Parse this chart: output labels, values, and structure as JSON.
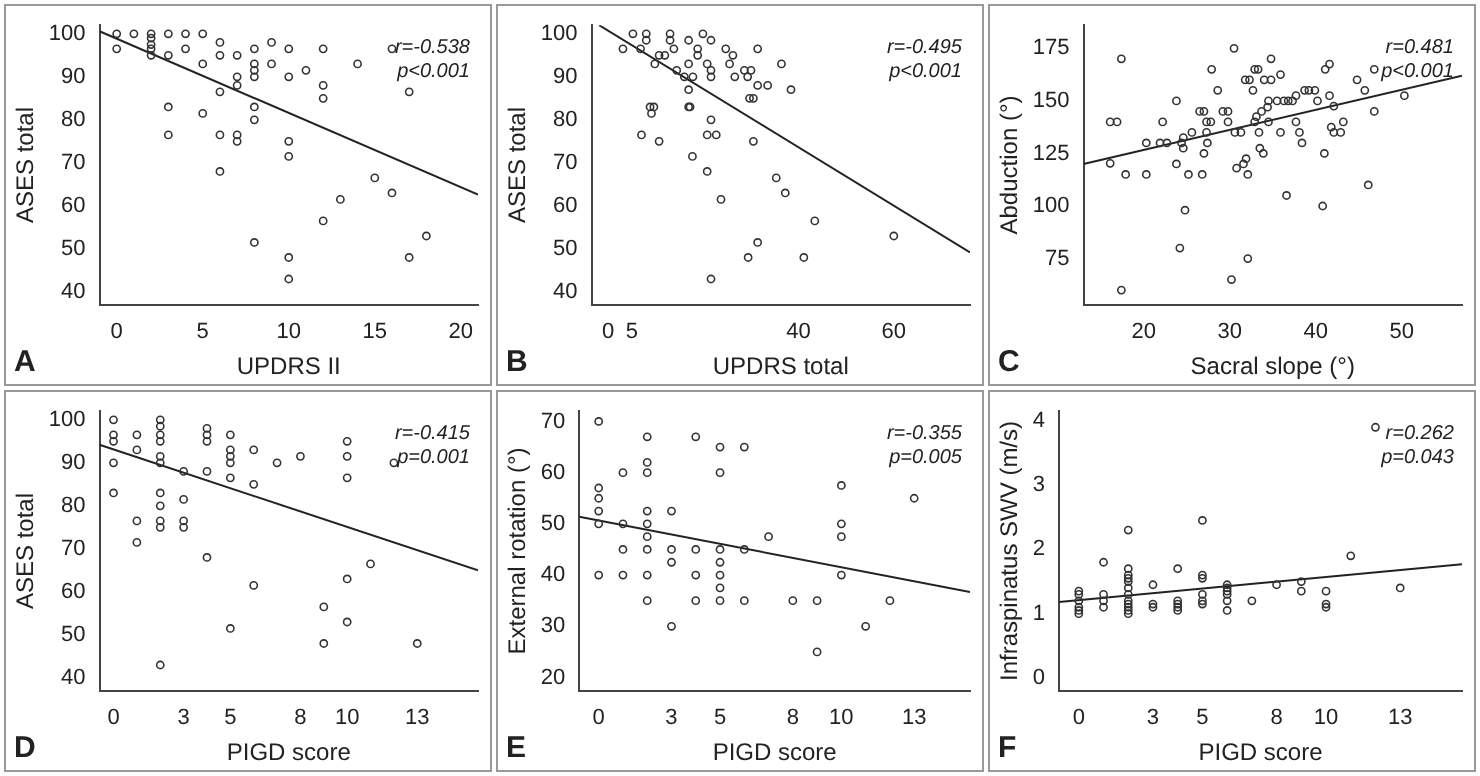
{
  "chart_data": [
    {
      "type": "scatter",
      "title": "A",
      "xlabel": "UPDRS II",
      "ylabel": "ASES total",
      "xlim": [
        -1,
        21
      ],
      "ylim": [
        37,
        102
      ],
      "xticks": [
        0,
        5,
        10,
        15,
        20
      ],
      "yticks": [
        40,
        50,
        60,
        70,
        80,
        90,
        100
      ],
      "grid": false,
      "legend": false,
      "marker": "circle",
      "annotations": [
        "r=-0.538",
        "p<0.001"
      ],
      "series": [
        {
          "type": "scatter",
          "color": "#333333",
          "x": [
            0,
            0,
            1,
            2,
            2,
            2,
            2,
            2,
            3,
            3,
            3,
            3,
            4,
            4,
            5,
            5,
            5,
            6,
            6,
            6,
            6,
            6,
            7,
            7,
            7,
            7,
            7,
            8,
            8,
            8,
            8,
            8,
            8,
            8,
            9,
            9,
            10,
            10,
            10,
            10,
            10,
            10,
            11,
            12,
            12,
            12,
            12,
            13,
            14,
            15,
            16,
            16,
            17,
            17,
            18
          ],
          "values": [
            100,
            96.5,
            100,
            100,
            99,
            97.5,
            96.5,
            95,
            100,
            95,
            83,
            76.5,
            100,
            96.5,
            100,
            93,
            81.5,
            98,
            95,
            86.5,
            76.5,
            68,
            95,
            90,
            88,
            76.5,
            75,
            96.5,
            93,
            91.5,
            90,
            83,
            80,
            51.5,
            98,
            93,
            96.5,
            90,
            75,
            71.5,
            48,
            43,
            91.5,
            96.5,
            88,
            85,
            56.5,
            61.5,
            93,
            66.5,
            96.5,
            63,
            86.5,
            48,
            53
          ]
        },
        {
          "type": "line",
          "marker": "none",
          "color": "#222222",
          "x": [
            -1,
            21
          ],
          "values": [
            100.6,
            62.6
          ]
        }
      ]
    },
    {
      "type": "scatter",
      "title": "B",
      "xlabel": "UPDRS total",
      "ylabel": "ASES total",
      "xlim": [
        -3.5,
        76
      ],
      "ylim": [
        37,
        102
      ],
      "xticks": [
        0,
        5,
        40,
        60
      ],
      "yticks": [
        40,
        50,
        60,
        70,
        80,
        90,
        100
      ],
      "grid": false,
      "legend": false,
      "marker": "circle",
      "annotations": [
        "r=-0.495",
        "p<0.001"
      ],
      "series": [
        {
          "type": "scatter",
          "color": "#333333",
          "x": [
            3.1,
            5.2,
            6.8,
            8,
            8,
            9.8,
            10.7,
            11.9,
            13,
            13,
            13.8,
            14.4,
            16,
            16.9,
            16.9,
            17.8,
            16.9,
            16.9,
            18.8,
            18.8,
            19.9,
            20.8,
            21.6,
            21.6,
            21.6,
            24.7,
            25.5,
            26.2,
            26.6,
            28.6,
            29.3,
            30,
            29.7,
            30.5,
            31.4,
            31.4,
            33.5,
            36.4,
            38.4,
            7,
            8.8,
            9.6,
            9.1,
            10.7,
            17.2,
            21.6,
            20.8,
            22.7,
            17.7,
            20.8,
            23.7,
            30.5,
            35.3,
            37.2,
            29.4,
            31.4,
            21.6,
            41.1,
            43.4,
            60
          ],
          "values": [
            96.5,
            100,
            96.5,
            100,
            98.5,
            93,
            95,
            95,
            100,
            98.5,
            96.5,
            91.5,
            90,
            93,
            98.5,
            90,
            87,
            83,
            96.5,
            95,
            100,
            93,
            91.5,
            90,
            98.5,
            96.5,
            93,
            95,
            90,
            91.5,
            90,
            91.5,
            85,
            85,
            96.5,
            88,
            88,
            93,
            87,
            76.5,
            83,
            83,
            81.5,
            75,
            83,
            80,
            76.5,
            76.5,
            71.5,
            68,
            61.5,
            75,
            66.5,
            63,
            48,
            51.5,
            43,
            48,
            56.5,
            53
          ]
        },
        {
          "type": "line",
          "marker": "none",
          "color": "#222222",
          "x": [
            -1.9,
            76
          ],
          "values": [
            102,
            49.2
          ]
        }
      ]
    },
    {
      "type": "scatter",
      "title": "C",
      "xlabel": "Sacral slope (°)",
      "ylabel": "Abduction (°)",
      "xlim": [
        13,
        57
      ],
      "ylim": [
        53,
        186
      ],
      "xticks": [
        20,
        30,
        40,
        50
      ],
      "yticks": [
        75,
        100,
        125,
        150,
        175
      ],
      "grid": false,
      "legend": false,
      "marker": "circle",
      "annotations": [
        "r=0.481",
        "p<0.001"
      ],
      "series": [
        {
          "type": "scatter",
          "color": "#333333",
          "x": [
            16.1,
            16.1,
            16.9,
            17.4,
            17.9,
            17.4,
            20.3,
            20.3,
            22.2,
            21.9,
            22.7,
            23.8,
            23.8,
            24.2,
            24.4,
            24.6,
            24.6,
            24.8,
            25.2,
            25.6,
            26.8,
            26.5,
            27,
            27,
            27.3,
            27.3,
            27.8,
            27.4,
            27.9,
            28.6,
            29.2,
            29.8,
            29.8,
            30.5,
            30.2,
            30.6,
            30.8,
            31.3,
            31.8,
            31.6,
            31.9,
            32.1,
            32.1,
            32.3,
            32.7,
            32.9,
            32.9,
            33.1,
            33.3,
            33.4,
            33.5,
            33.7,
            33.9,
            34,
            34.4,
            34.5,
            34.5,
            34.8,
            34.8,
            35.5,
            35.9,
            35.9,
            36.3,
            36.8,
            36.6,
            37.3,
            37.7,
            37.7,
            38.1,
            38.4,
            38.7,
            39.2,
            39.9,
            40.2,
            40.8,
            41,
            41.1,
            41.6,
            41.6,
            41.8,
            42.1,
            42.1,
            42.9,
            43.2,
            44.8,
            45.7,
            46.1,
            46.8,
            46.8,
            50.3
          ],
          "values": [
            120.3,
            140,
            140,
            170,
            115,
            60,
            130,
            115,
            140,
            130,
            130,
            150,
            120,
            80,
            130,
            132.5,
            127.5,
            98,
            115,
            135,
            115,
            145,
            145,
            125,
            135,
            140,
            140,
            130,
            165,
            155,
            145,
            145,
            140,
            175,
            65,
            135,
            118,
            135,
            160,
            120,
            122.5,
            75,
            115,
            160,
            155,
            165,
            140,
            142.5,
            165,
            135,
            127.5,
            145,
            125,
            160,
            147,
            140,
            150,
            170,
            160,
            150,
            135,
            162.5,
            150,
            150,
            105,
            150,
            140,
            152.5,
            135,
            130,
            155,
            155,
            155,
            150,
            100,
            125,
            165,
            167.5,
            152.5,
            137.5,
            135,
            147.5,
            135,
            140,
            160,
            155,
            110,
            165,
            145,
            152.5
          ]
        },
        {
          "type": "line",
          "marker": "none",
          "color": "#222222",
          "x": [
            13,
            57
          ],
          "values": [
            120,
            162
          ]
        }
      ]
    },
    {
      "type": "scatter",
      "title": "D",
      "xlabel": "PIGD score",
      "ylabel": "ASES total",
      "xlim": [
        -0.6,
        15.6
      ],
      "ylim": [
        37,
        102
      ],
      "xticks": [
        0,
        3,
        5,
        8,
        10,
        13
      ],
      "yticks": [
        40,
        50,
        60,
        70,
        80,
        90,
        100
      ],
      "grid": false,
      "legend": false,
      "marker": "circle",
      "annotations": [
        "r=-0.415",
        "p=0.001"
      ],
      "series": [
        {
          "type": "scatter",
          "color": "#333333",
          "x": [
            0,
            0,
            0,
            0,
            0,
            1,
            1,
            1,
            1,
            2,
            2,
            2,
            2,
            2,
            2,
            2,
            2,
            2,
            2,
            2,
            3,
            3,
            3,
            3,
            4,
            4,
            4,
            4,
            4,
            5,
            5,
            5,
            5,
            5,
            5,
            6,
            6,
            6,
            7,
            8,
            9,
            9,
            10,
            10,
            10,
            10,
            10,
            11,
            12,
            13
          ],
          "values": [
            100,
            96.5,
            95,
            90,
            83,
            96.5,
            93,
            76.5,
            71.5,
            100,
            98.5,
            96.5,
            95,
            91.5,
            90,
            83,
            80,
            76.5,
            75,
            43,
            88,
            81.5,
            76.5,
            75,
            98,
            96.5,
            95,
            88,
            68,
            96.5,
            93,
            91.5,
            90,
            86.5,
            51.5,
            93,
            85,
            61.5,
            90,
            91.5,
            56.5,
            48,
            95,
            91.5,
            86.5,
            63,
            53,
            66.5,
            90,
            48
          ]
        },
        {
          "type": "line",
          "marker": "none",
          "color": "#222222",
          "x": [
            -0.6,
            15.6
          ],
          "values": [
            94.2,
            65
          ]
        }
      ]
    },
    {
      "type": "scatter",
      "title": "E",
      "xlabel": "PIGD score",
      "ylabel": "External rotation (°)",
      "xlim": [
        -0.8,
        15.3
      ],
      "ylim": [
        17.4,
        72
      ],
      "xticks": [
        0,
        3,
        5,
        8,
        10,
        13
      ],
      "yticks": [
        20,
        30,
        40,
        50,
        60,
        70
      ],
      "grid": false,
      "legend": false,
      "marker": "circle",
      "annotations": [
        "r=-0.355",
        "p=0.005"
      ],
      "series": [
        {
          "type": "scatter",
          "color": "#333333",
          "x": [
            0,
            0,
            0,
            0,
            0,
            0,
            1,
            1,
            1,
            1,
            2,
            2,
            2,
            2,
            2,
            2,
            2,
            2,
            2,
            3,
            3,
            3,
            3,
            4,
            4,
            4,
            4,
            5,
            5,
            5,
            5,
            5,
            5,
            5,
            6,
            6,
            6,
            7,
            8,
            9,
            9,
            10,
            10,
            10,
            10,
            11,
            12,
            13
          ],
          "values": [
            70,
            57,
            55,
            52.5,
            50,
            40,
            60,
            50,
            45,
            40,
            67,
            62,
            60,
            52.5,
            50,
            47.5,
            45,
            40,
            35,
            52.5,
            45,
            42.5,
            30,
            67,
            45,
            40,
            35,
            65,
            60,
            45,
            42.5,
            40,
            37.5,
            35,
            65,
            45,
            35,
            47.5,
            35,
            35,
            25,
            57.5,
            50,
            47.5,
            40,
            30,
            35,
            55
          ]
        },
        {
          "type": "line",
          "marker": "none",
          "color": "#222222",
          "x": [
            -0.8,
            15.3
          ],
          "values": [
            51.4,
            36.7
          ]
        }
      ]
    },
    {
      "type": "scatter",
      "title": "F",
      "xlabel": "PIGD score",
      "ylabel": "Infraspinatus SWV (m/s)",
      "xlim": [
        -0.8,
        15.5
      ],
      "ylim": [
        -0.2,
        4.15
      ],
      "xticks": [
        0,
        3,
        5,
        8,
        10,
        13
      ],
      "yticks": [
        0,
        1,
        2,
        3,
        4
      ],
      "grid": false,
      "legend": false,
      "marker": "circle",
      "annotations": [
        "r=0.262",
        "p=0.043"
      ],
      "series": [
        {
          "type": "scatter",
          "color": "#333333",
          "x": [
            0,
            0,
            0,
            0,
            0,
            0,
            1,
            1,
            1,
            1,
            2,
            2,
            2,
            2,
            2,
            2,
            2,
            2,
            2,
            2,
            2,
            2,
            3,
            3,
            3,
            4,
            4,
            4,
            4,
            4,
            5,
            5,
            5,
            5,
            5,
            5,
            6,
            6,
            6,
            6,
            6,
            6,
            7,
            8,
            9,
            9,
            10,
            10,
            10,
            11,
            12,
            13
          ],
          "values": [
            1.35,
            1.3,
            1.2,
            1.1,
            1.05,
            1,
            1.8,
            1.3,
            1.2,
            1.1,
            2.3,
            1.7,
            1.6,
            1.55,
            1.5,
            1.4,
            1.3,
            1.2,
            1.15,
            1.1,
            1.05,
            1,
            1.45,
            1.15,
            1.1,
            1.7,
            1.2,
            1.15,
            1.1,
            1.05,
            2.45,
            1.6,
            1.55,
            1.3,
            1.2,
            1.15,
            1.45,
            1.4,
            1.35,
            1.3,
            1.2,
            1.05,
            1.2,
            1.45,
            1.5,
            1.35,
            1.35,
            1.15,
            1.1,
            1.9,
            3.9,
            1.4
          ]
        },
        {
          "type": "line",
          "marker": "none",
          "color": "#222222",
          "x": [
            -0.8,
            15.5
          ],
          "values": [
            1.18,
            1.77
          ]
        }
      ]
    }
  ]
}
